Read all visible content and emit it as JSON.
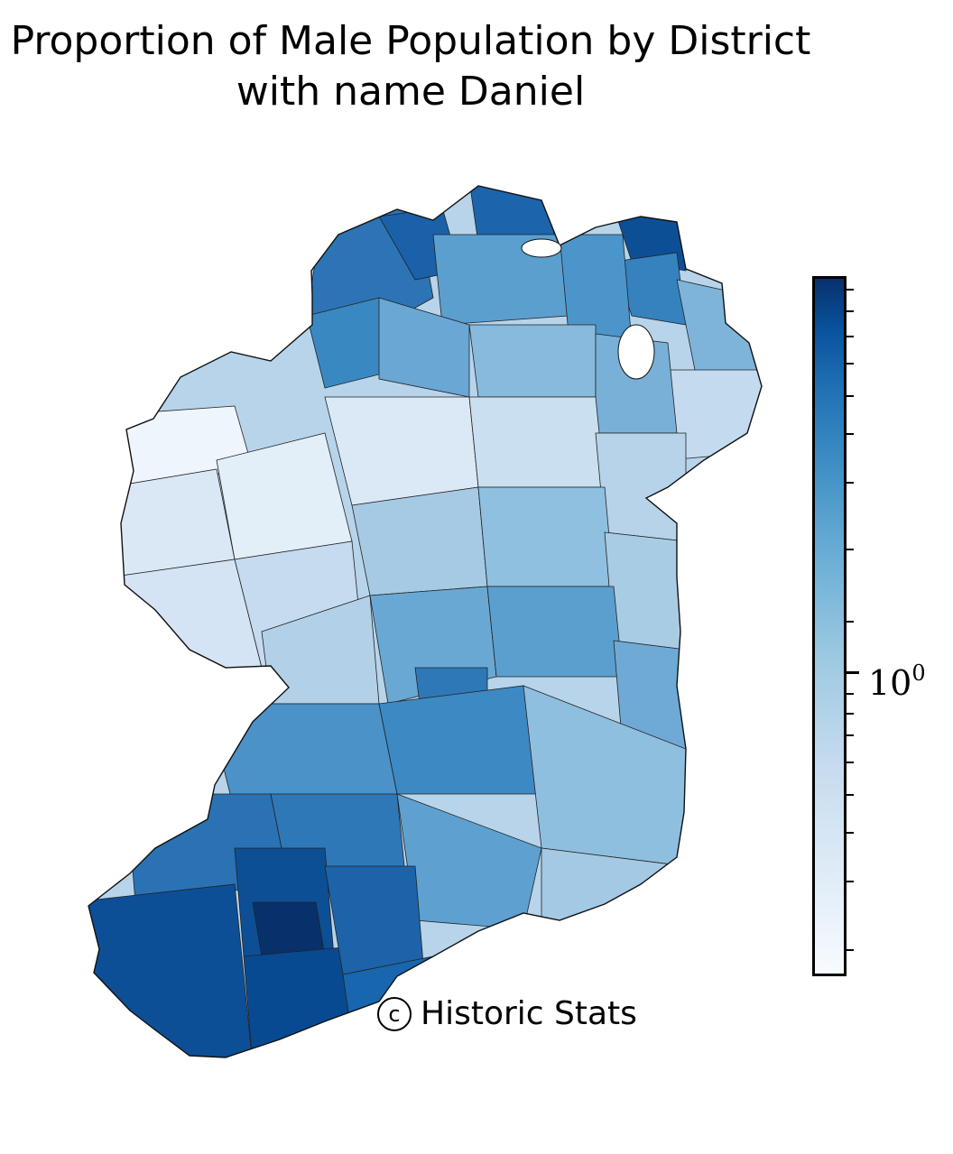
{
  "title": {
    "line1": "Proportion of Male Population by District",
    "line2": "with name Daniel"
  },
  "credit": {
    "symbol": "c",
    "text": "Historic Stats"
  },
  "colorbar": {
    "scale": "log",
    "colormap": "Blues",
    "tick_base": "10",
    "tick_exponent": "0",
    "colors": [
      "#f7fbff",
      "#deebf7",
      "#c6dbef",
      "#9ecae1",
      "#6baed6",
      "#4292c6",
      "#2171b5",
      "#08519c",
      "#08306b"
    ]
  },
  "map": {
    "region": "Ireland",
    "unit": "district",
    "pattern": "darkest in the south-west and north-west, lightest in the west and midlands"
  }
}
